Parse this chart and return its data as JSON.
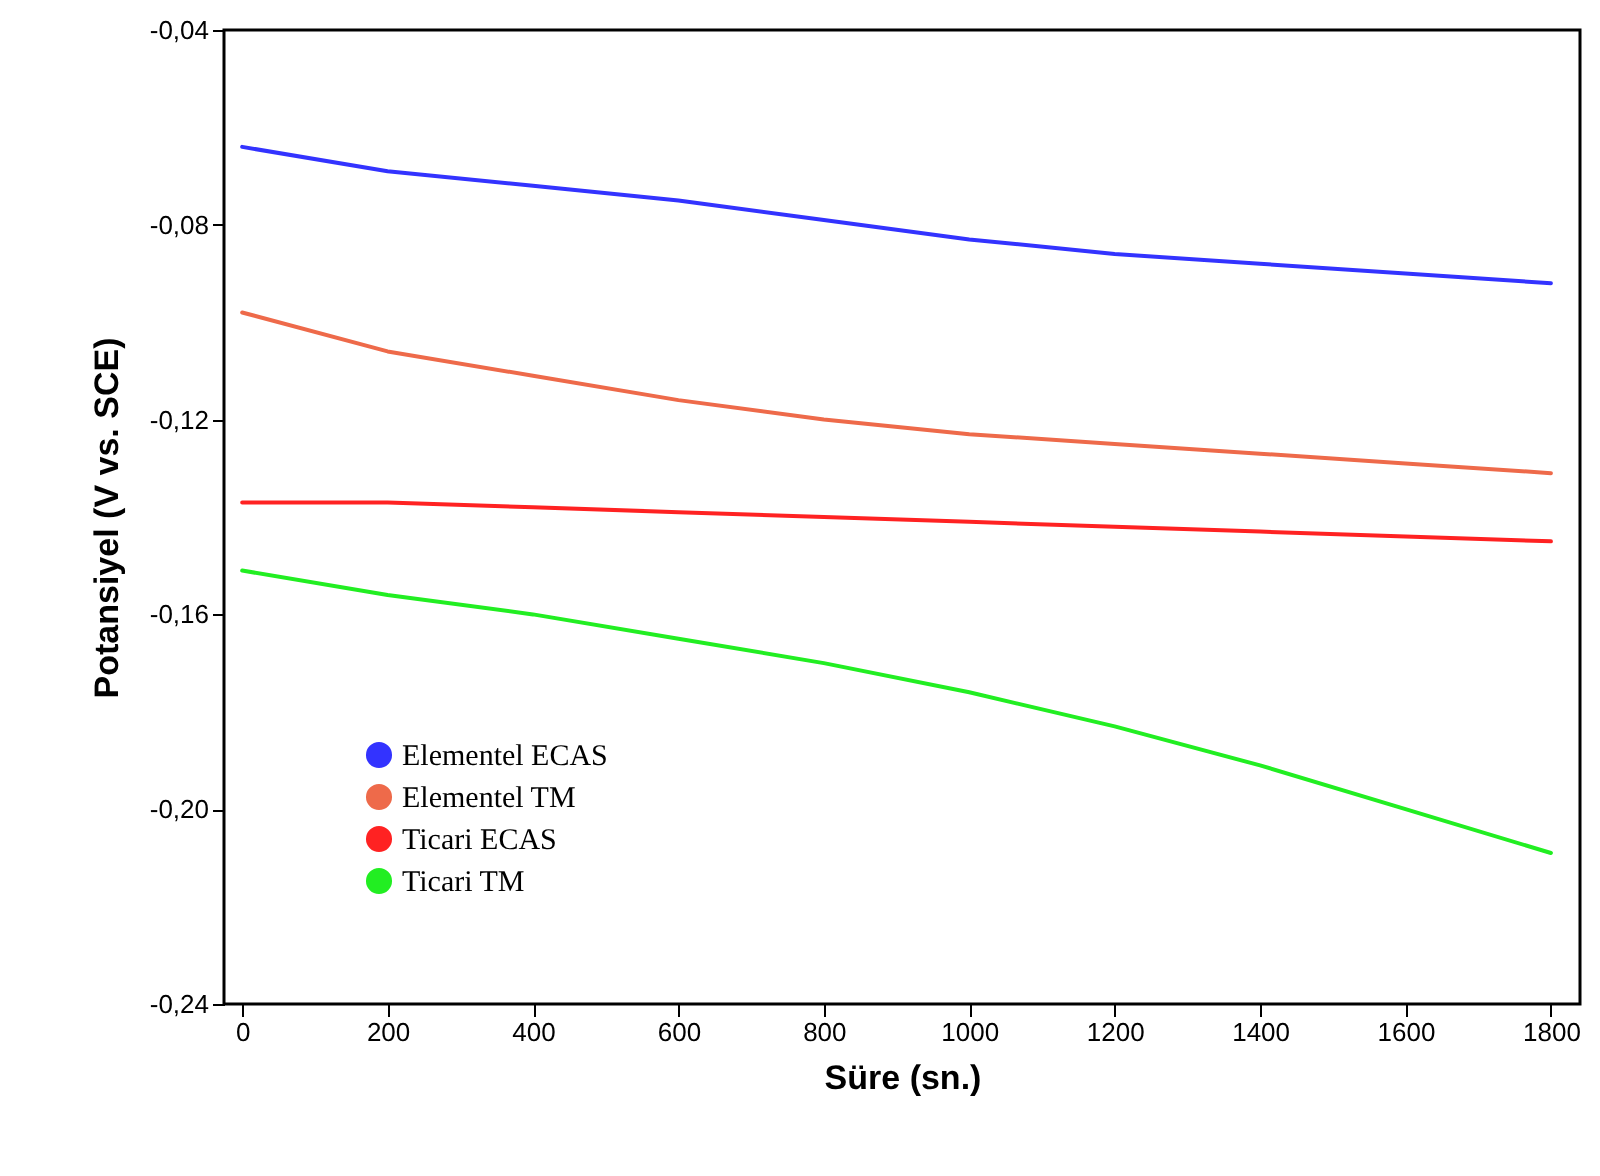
{
  "chart_data": {
    "type": "line",
    "xlabel": "Süre (sn.)",
    "ylabel": "Potansiyel (V vs. SCE)",
    "xlim": [
      -25,
      1840
    ],
    "xticks": [
      0,
      200,
      400,
      600,
      800,
      1000,
      1200,
      1400,
      1600,
      1800
    ],
    "ylim": [
      -0.24,
      -0.04
    ],
    "yticks": [
      {
        "value": -0.24,
        "label": "-0,24"
      },
      {
        "value": -0.2,
        "label": "-0,20"
      },
      {
        "value": -0.16,
        "label": "-0,16"
      },
      {
        "value": -0.12,
        "label": "-0,12"
      },
      {
        "value": -0.08,
        "label": "-0,08"
      },
      {
        "value": -0.04,
        "label": "-0,04"
      }
    ],
    "x": [
      0,
      200,
      400,
      600,
      800,
      1000,
      1200,
      1400,
      1600,
      1800
    ],
    "series": [
      {
        "name": "Elementel ECAS",
        "color": "#3333ff",
        "values": [
          -0.064,
          -0.069,
          -0.072,
          -0.075,
          -0.079,
          -0.083,
          -0.086,
          -0.088,
          -0.09,
          -0.092
        ]
      },
      {
        "name": "Elementel TM",
        "color": "#ee6a4a",
        "values": [
          -0.098,
          -0.106,
          -0.111,
          -0.116,
          -0.12,
          -0.123,
          -0.125,
          -0.127,
          -0.129,
          -0.131
        ]
      },
      {
        "name": "Ticari ECAS",
        "color": "#ff2222",
        "values": [
          -0.137,
          -0.137,
          -0.138,
          -0.139,
          -0.14,
          -0.141,
          -0.142,
          -0.143,
          -0.144,
          -0.145
        ]
      },
      {
        "name": "Ticari TM",
        "color": "#22ee22",
        "values": [
          -0.151,
          -0.156,
          -0.16,
          -0.165,
          -0.17,
          -0.176,
          -0.183,
          -0.191,
          -0.2,
          -0.209
        ]
      }
    ],
    "legend": "bottom left",
    "grid": false,
    "line_style": "solid",
    "marker": "none"
  }
}
